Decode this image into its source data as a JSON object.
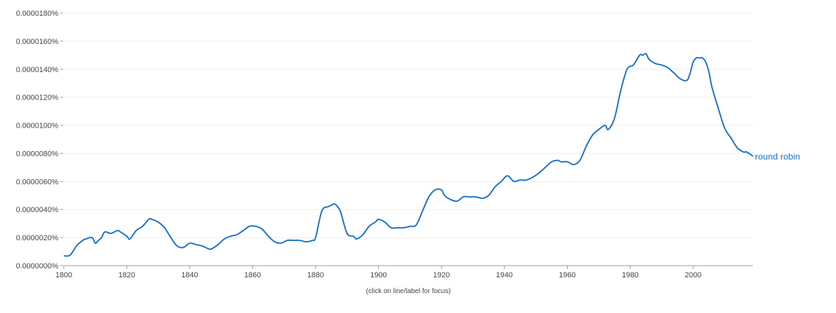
{
  "caption": "(click on line/label for focus)",
  "colors": {
    "series": "#1a73c8",
    "grid": "#eeeeee",
    "axis": "#999999",
    "text": "#444444"
  },
  "chart_data": {
    "type": "line",
    "x_ticks": [
      1800,
      1820,
      1840,
      1860,
      1880,
      1900,
      1920,
      1940,
      1960,
      1980,
      2000
    ],
    "y_ticks": [
      0,
      2e-06,
      4e-06,
      6e-06,
      8e-06,
      1e-05,
      1.2e-05,
      1.4e-05,
      1.6e-05,
      1.8e-05
    ],
    "y_tick_labels": [
      "0.0000000%",
      "0.0000020%",
      "0.0000040%",
      "0.0000060%",
      "0.0000080%",
      "0.0000100%",
      "0.0000120%",
      "0.0000140%",
      "0.0000160%",
      "0.0000180%"
    ],
    "xlim": [
      1800,
      2019
    ],
    "ylim": [
      0,
      1.8e-05
    ],
    "grid": true,
    "series": [
      {
        "name": "round robin",
        "x": [
          1800,
          1802,
          1804,
          1806,
          1807,
          1809,
          1810,
          1811,
          1812,
          1813,
          1815,
          1817,
          1818,
          1820,
          1821,
          1823,
          1825,
          1827,
          1828,
          1830,
          1832,
          1834,
          1836,
          1838,
          1840,
          1842,
          1844,
          1846,
          1847,
          1849,
          1851,
          1853,
          1855,
          1857,
          1859,
          1861,
          1863,
          1865,
          1867,
          1869,
          1871,
          1873,
          1875,
          1877,
          1879,
          1880,
          1882,
          1884,
          1885,
          1886,
          1887,
          1888,
          1890,
          1892,
          1893,
          1895,
          1897,
          1899,
          1900,
          1902,
          1904,
          1906,
          1908,
          1910,
          1912,
          1914,
          1916,
          1918,
          1920,
          1921,
          1923,
          1925,
          1927,
          1929,
          1931,
          1933,
          1935,
          1937,
          1939,
          1941,
          1943,
          1945,
          1947,
          1949,
          1951,
          1953,
          1955,
          1957,
          1958,
          1960,
          1962,
          1964,
          1966,
          1968,
          1970,
          1972,
          1973,
          1975,
          1977,
          1979,
          1981,
          1983,
          1984,
          1985,
          1986,
          1988,
          1990,
          1992,
          1994,
          1996,
          1998,
          1999,
          2000,
          2001,
          2002,
          2003,
          2004,
          2005,
          2006,
          2008,
          2010,
          2012,
          2014,
          2016,
          2017,
          2019
        ],
        "y": [
          7e-07,
          7.5e-07,
          1.4e-06,
          1.8e-06,
          1.9e-06,
          2e-06,
          1.6e-06,
          1.8e-06,
          2e-06,
          2.4e-06,
          2.3e-06,
          2.5e-06,
          2.4e-06,
          2.1e-06,
          1.9e-06,
          2.5e-06,
          2.8e-06,
          3.3e-06,
          3.3e-06,
          3.1e-06,
          2.7e-06,
          2e-06,
          1.4e-06,
          1.3e-06,
          1.6e-06,
          1.5e-06,
          1.4e-06,
          1.2e-06,
          1.2e-06,
          1.5e-06,
          1.9e-06,
          2.1e-06,
          2.2e-06,
          2.5e-06,
          2.8e-06,
          2.8e-06,
          2.6e-06,
          2.1e-06,
          1.7e-06,
          1.6e-06,
          1.8e-06,
          1.8e-06,
          1.8e-06,
          1.7e-06,
          1.8e-06,
          2e-06,
          3.9e-06,
          4.2e-06,
          4.3e-06,
          4.4e-06,
          4.2e-06,
          3.8e-06,
          2.3e-06,
          2.1e-06,
          1.9e-06,
          2.2e-06,
          2.8e-06,
          3.1e-06,
          3.3e-06,
          3.1e-06,
          2.7e-06,
          2.7e-06,
          2.7e-06,
          2.8e-06,
          2.9e-06,
          3.9e-06,
          4.9e-06,
          5.4e-06,
          5.4e-06,
          5e-06,
          4.7e-06,
          4.6e-06,
          4.9e-06,
          4.9e-06,
          4.9e-06,
          4.8e-06,
          5e-06,
          5.6e-06,
          6e-06,
          6.4e-06,
          6e-06,
          6.1e-06,
          6.1e-06,
          6.3e-06,
          6.6e-06,
          7e-06,
          7.4e-06,
          7.5e-06,
          7.4e-06,
          7.4e-06,
          7.2e-06,
          7.5e-06,
          8.5e-06,
          9.3e-06,
          9.7e-06,
          1e-05,
          9.7e-06,
          1.05e-05,
          1.25e-05,
          1.4e-05,
          1.43e-05,
          1.5e-05,
          1.5e-05,
          1.51e-05,
          1.47e-05,
          1.44e-05,
          1.43e-05,
          1.41e-05,
          1.37e-05,
          1.33e-05,
          1.32e-05,
          1.37e-05,
          1.45e-05,
          1.48e-05,
          1.48e-05,
          1.48e-05,
          1.45e-05,
          1.38e-05,
          1.27e-05,
          1.12e-05,
          9.8e-06,
          9.1e-06,
          8.4e-06,
          8.1e-06,
          8.1e-06,
          7.8e-06
        ]
      }
    ]
  }
}
